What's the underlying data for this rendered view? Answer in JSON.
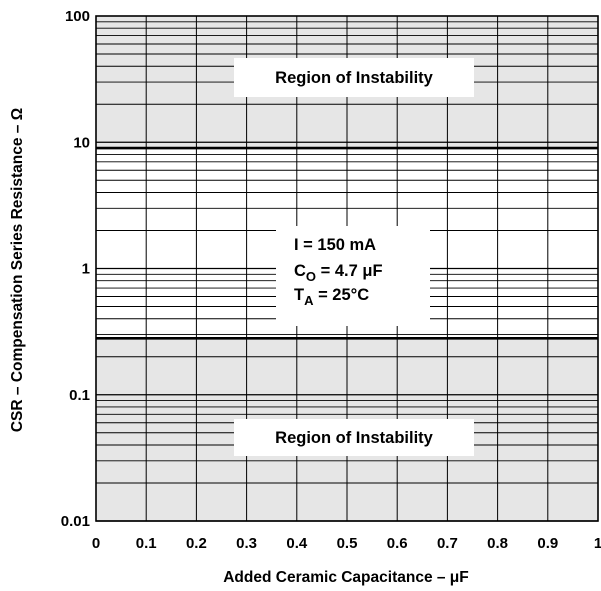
{
  "chart_data": {
    "type": "line",
    "xlabel": "Added Ceramic Capacitance – μF",
    "ylabel": "CSR – Compensation Series Resistance – Ω",
    "x_scale": "linear",
    "y_scale": "log",
    "xlim": [
      0,
      1
    ],
    "ylim": [
      0.01,
      100
    ],
    "x_ticks": [
      "0",
      "0.1",
      "0.2",
      "0.3",
      "0.4",
      "0.5",
      "0.6",
      "0.7",
      "0.8",
      "0.9",
      "1"
    ],
    "y_ticks": [
      "100",
      "10",
      "1",
      "0.1",
      "0.01"
    ],
    "grid": true,
    "series": [
      {
        "x": [
          0,
          1
        ],
        "values": [
          9,
          9
        ]
      },
      {
        "x": [
          0,
          1
        ],
        "values": [
          0.28,
          0.28
        ]
      }
    ],
    "regions": [
      {
        "label": "Region of Instability",
        "y_range": [
          9,
          100
        ],
        "color": "#e6e6e6"
      },
      {
        "label": "Region of Instability",
        "y_range": [
          0.01,
          0.28
        ],
        "color": "#e6e6e6"
      }
    ],
    "conditions": {
      "current": {
        "text": "I = 150 mA"
      },
      "capacitance": {
        "prefix": "C",
        "subscript": "O",
        "suffix": " = 4.7 μF"
      },
      "temperature": {
        "prefix": "T",
        "subscript": "A",
        "suffix": " = 25°C"
      }
    }
  }
}
